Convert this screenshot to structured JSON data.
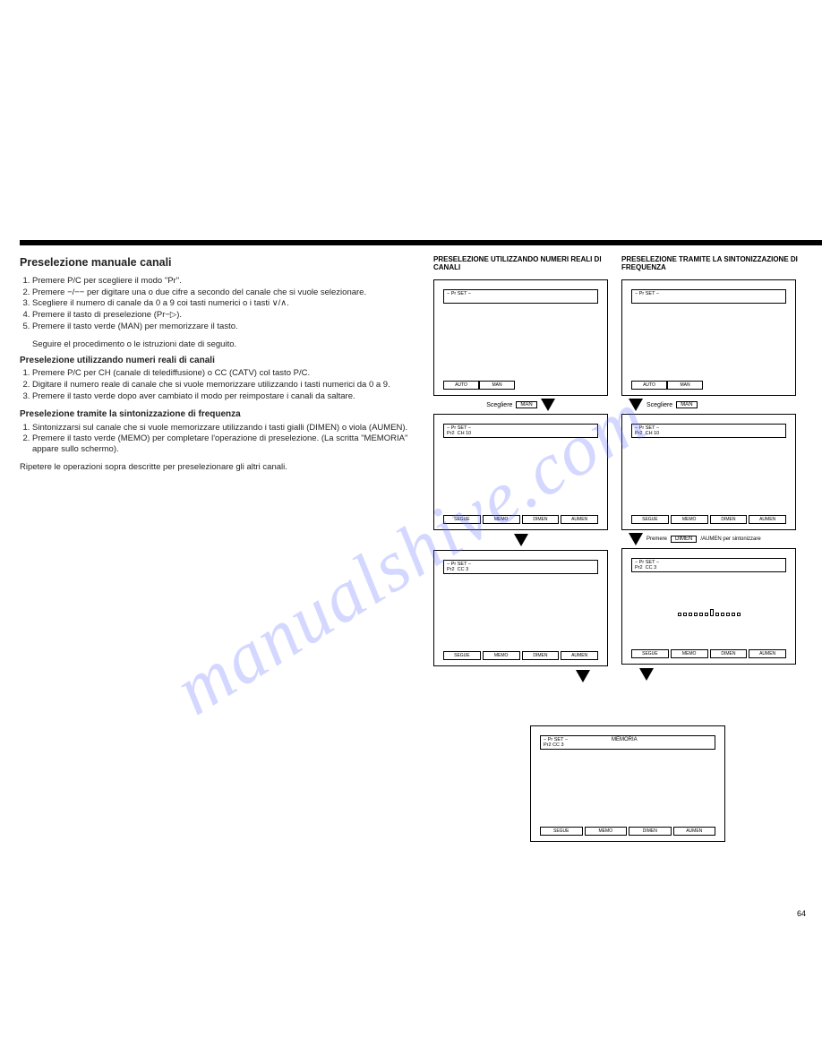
{
  "watermark": "manualshive.com",
  "page_number": "64",
  "left_column": {
    "title": "Preselezione manuale canali",
    "main_steps": [
      "Premere P/C per scegliere il modo \"Pr\".",
      "Premere −/−− per digitare una o due cifre a secondo del canale che si vuole selezionare.",
      "Scegliere il numero di canale da 0 a 9 coi tasti numerici o i tasti ∨/∧.",
      "Premere il tasto di preselezione (Pr−▷).",
      "Premere il tasto verde (MAN) per memorizzare il tasto."
    ],
    "main_note": "Seguire el procedimento o le istruzioni date di seguito.",
    "sub1_title": "Preselezione utilizzando numeri reali di canali",
    "sub1_steps": [
      "Premere P/C per CH (canale di telediffusione) o CC (CATV) col tasto P/C.",
      "Digitare il numero reale di canale che si vuole memorizzare utilizzando i tasti numerici da 0 a 9.",
      "Premere il tasto verde dopo aver cambiato il modo per reimpostare i canali da saltare."
    ],
    "sub2_title": "Preselezione tramite la sintonizzazione di frequenza",
    "sub2_steps": [
      "Sintonizzarsi sul canale che si vuole memorizzare utilizzando i tasti gialli (DIMEN) o viola (AUMEN).",
      "Premere il tasto verde (MEMO) per completare l'operazione di preselezione. (La scritta \"MEMORIA\" appare sullo schermo)."
    ],
    "repeat_note": "Ripetere le operazioni sopra descritte per preselezionare gli altri canali."
  },
  "right_flow": {
    "colA_title": "PRESELEZIONE UTILIZZANDO NUMERI REALI DI CANALI",
    "colB_title": "PRESELEZIONE TRAMITE LA SINTONIZZAZIONE DI FREQUENZA",
    "scegliere": "Scegliere",
    "man": "MAN",
    "premere": "Premere",
    "dimen": "DIMEN",
    "aumen_suffix": "/AUMEN per sintonizzare",
    "screen1": {
      "header": "− Pr SET −",
      "footer": [
        "AUTO",
        "MAN"
      ]
    },
    "screen2": {
      "header": "− Pr SET −\nPr2  CH 10",
      "footer": [
        "SEGUE",
        "MEMO",
        "DIMEN",
        "AUMEN"
      ]
    },
    "screen3": {
      "header": "− Pr SET −\nPr2  CC 3",
      "footer": [
        "SEGUE",
        "MEMO",
        "DIMEN",
        "AUMEN"
      ]
    },
    "screenB1": {
      "header": "− Pr SET −",
      "footer": [
        "AUTO",
        "MAN"
      ]
    },
    "screenB2": {
      "header": "− Pr SET −\nPr2  CH 10",
      "footer": [
        "SEGUE",
        "MEMO",
        "DIMEN",
        "AUMEN"
      ]
    },
    "screenB3": {
      "header": "− Pr SET −\nPr2  CC 3",
      "footer": [
        "SEGUE",
        "MEMO",
        "DIMEN",
        "AUMEN"
      ]
    },
    "final": {
      "header": "− Pr SET −\nPr2 CC 3",
      "memoria": "MEMORIA",
      "footer": [
        "SEGUE",
        "MEMO",
        "DIMEN",
        "AUMEN"
      ]
    },
    "bar_heights": [
      4,
      4,
      4,
      4,
      4,
      4,
      8,
      4,
      4,
      4,
      4,
      4
    ]
  },
  "style": {
    "text_color": "#222222",
    "border_color": "#000000",
    "watermark_color": "rgba(100,110,255,0.28)",
    "background": "#ffffff",
    "title_fontsize_pt": 12.5,
    "body_fontsize_pt": 9.5,
    "small_fontsize_pt": 8,
    "tiny_fontsize_pt": 6
  }
}
